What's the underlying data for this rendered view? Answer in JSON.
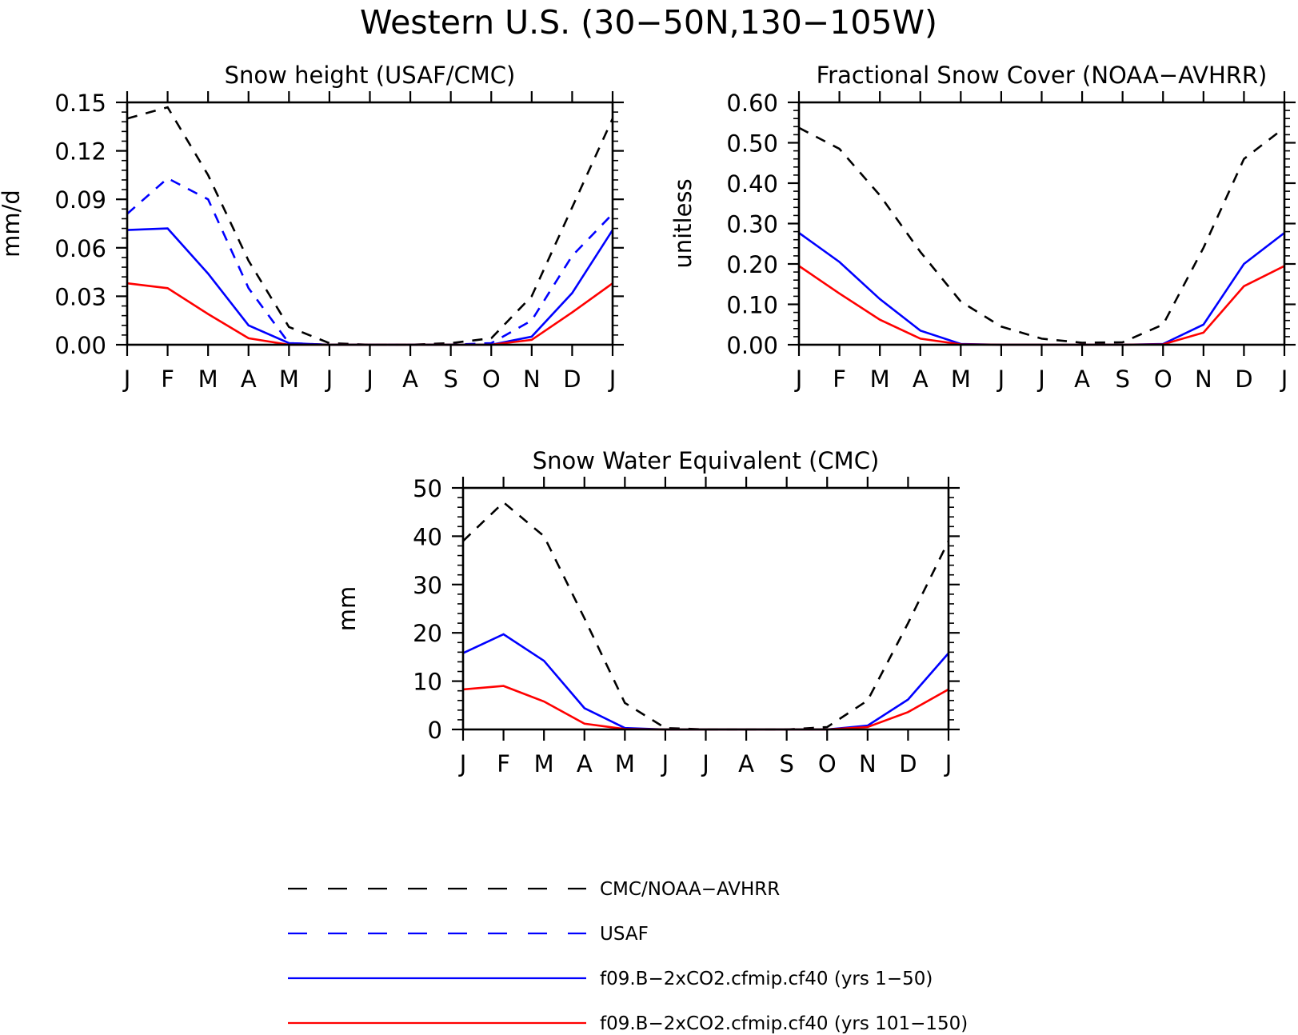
{
  "title": "Western U.S. (30−50N,130−105W)",
  "legend_position": "bottom",
  "series_styles": [
    {
      "key": "obs",
      "color": "#000000",
      "dash": "dashed"
    },
    {
      "key": "usaf",
      "color": "#0000ff",
      "dash": "dashed"
    },
    {
      "key": "m1",
      "color": "#0000ff",
      "dash": "solid"
    },
    {
      "key": "m2",
      "color": "#ff0000",
      "dash": "solid"
    }
  ],
  "legend": [
    {
      "key": "obs",
      "label": "CMC/NOAA−AVHRR"
    },
    {
      "key": "usaf",
      "label": "USAF"
    },
    {
      "key": "m1",
      "label": "f09.B−2xCO2.cfmip.cf40 (yrs 1−50)"
    },
    {
      "key": "m2",
      "label": "f09.B−2xCO2.cfmip.cf40 (yrs 101−150)"
    }
  ],
  "chart_data": [
    {
      "type": "line",
      "title": "Snow height (USAF/CMC)",
      "xlabel": "",
      "ylabel": "mm/d",
      "categories": [
        "J",
        "F",
        "M",
        "A",
        "M",
        "J",
        "J",
        "A",
        "S",
        "O",
        "N",
        "D",
        "J"
      ],
      "ylim": [
        0,
        0.15
      ],
      "yticks": [
        "0.00",
        "0.03",
        "0.06",
        "0.09",
        "0.12",
        "0.15"
      ],
      "grid": false,
      "series": [
        {
          "key": "obs",
          "values": [
            0.14,
            0.147,
            0.105,
            0.052,
            0.011,
            0.001,
            0.0,
            0.0,
            0.001,
            0.004,
            0.03,
            0.085,
            0.14
          ]
        },
        {
          "key": "usaf",
          "values": [
            0.081,
            0.103,
            0.09,
            0.035,
            0.001,
            0.0,
            0.0,
            0.0,
            0.0,
            0.001,
            0.015,
            0.055,
            0.081
          ]
        },
        {
          "key": "m1",
          "values": [
            0.071,
            0.072,
            0.044,
            0.012,
            0.001,
            0.0,
            0.0,
            0.0,
            0.0,
            0.0,
            0.005,
            0.032,
            0.071
          ]
        },
        {
          "key": "m2",
          "values": [
            0.038,
            0.035,
            0.019,
            0.004,
            0.0,
            0.0,
            0.0,
            0.0,
            0.0,
            0.0,
            0.003,
            0.02,
            0.038
          ]
        }
      ]
    },
    {
      "type": "line",
      "title": "Fractional Snow Cover (NOAA−AVHRR)",
      "xlabel": "",
      "ylabel": "unitless",
      "categories": [
        "J",
        "F",
        "M",
        "A",
        "M",
        "J",
        "J",
        "A",
        "S",
        "O",
        "N",
        "D",
        "J"
      ],
      "ylim": [
        0,
        0.6
      ],
      "yticks": [
        "0.00",
        "0.10",
        "0.20",
        "0.30",
        "0.40",
        "0.50",
        "0.60"
      ],
      "grid": false,
      "series": [
        {
          "key": "obs",
          "values": [
            0.537,
            0.485,
            0.37,
            0.23,
            0.107,
            0.045,
            0.015,
            0.005,
            0.006,
            0.05,
            0.24,
            0.46,
            0.537
          ]
        },
        {
          "key": "m1",
          "values": [
            0.277,
            0.205,
            0.113,
            0.035,
            0.002,
            0.0,
            0.0,
            0.0,
            0.0,
            0.002,
            0.05,
            0.2,
            0.277
          ]
        },
        {
          "key": "m2",
          "values": [
            0.195,
            0.127,
            0.062,
            0.015,
            0.001,
            0.0,
            0.0,
            0.0,
            0.0,
            0.001,
            0.03,
            0.145,
            0.195
          ]
        }
      ]
    },
    {
      "type": "line",
      "title": "Snow Water Equivalent (CMC)",
      "xlabel": "",
      "ylabel": "mm",
      "categories": [
        "J",
        "F",
        "M",
        "A",
        "M",
        "J",
        "J",
        "A",
        "S",
        "O",
        "N",
        "D",
        "J"
      ],
      "ylim": [
        0,
        50
      ],
      "yticks": [
        "0",
        "10",
        "20",
        "30",
        "40",
        "50"
      ],
      "grid": false,
      "series": [
        {
          "key": "obs",
          "values": [
            39.0,
            47.0,
            40.0,
            23.0,
            5.5,
            0.3,
            0.0,
            0.0,
            0.0,
            0.5,
            6.0,
            22.0,
            39.0
          ]
        },
        {
          "key": "m1",
          "values": [
            15.8,
            19.7,
            14.2,
            4.4,
            0.3,
            0.0,
            0.0,
            0.0,
            0.0,
            0.0,
            0.8,
            6.2,
            15.8
          ]
        },
        {
          "key": "m2",
          "values": [
            8.3,
            9.0,
            5.8,
            1.2,
            0.1,
            0.0,
            0.0,
            0.0,
            0.0,
            0.0,
            0.5,
            3.6,
            8.3
          ]
        }
      ]
    }
  ]
}
